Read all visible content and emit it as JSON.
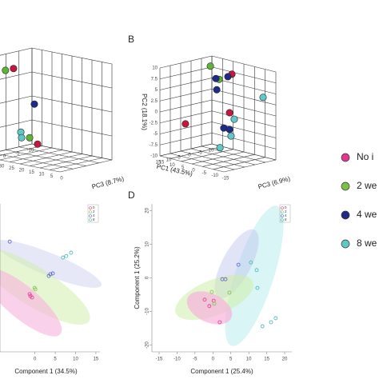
{
  "legend": [
    {
      "label": "No i",
      "color": "#e8348e"
    },
    {
      "label": "2 we",
      "color": "#7cc242"
    },
    {
      "label": "4 we",
      "color": "#1f2a8c"
    },
    {
      "label": "8 we",
      "color": "#62c7c9"
    }
  ],
  "chart_data": [
    {
      "type": "scatter3d",
      "zlabel": "PC3 (8.7%)",
      "xlim": [
        -10,
        10
      ],
      "ylim": [
        -10,
        10
      ],
      "zlim": [
        40,
        0
      ],
      "xticks": [
        -10,
        -5,
        0,
        5,
        10
      ],
      "yticks": [
        -10,
        -5,
        0,
        5,
        10
      ],
      "zticks": [
        40,
        35,
        30,
        25,
        20,
        15,
        10,
        5,
        0
      ],
      "series": [
        {
          "color": "#c8173f",
          "x": [
            -2.9,
            -10
          ],
          "y": [
            6.6,
            -9.8
          ],
          "z": [
            40,
            37.2
          ]
        },
        {
          "color": "#5db535",
          "x": [
            0.2,
            -9.1
          ],
          "y": [
            6.6,
            -8.6
          ],
          "z": [
            40,
            40
          ]
        },
        {
          "color": "#1f2a8c",
          "x": [
            -10
          ],
          "y": [
            -1.6
          ],
          "z": [
            38.8
          ]
        },
        {
          "color": "#62c7c9",
          "x": [
            -5.7,
            -6
          ],
          "y": [
            -7,
            -8.2
          ],
          "z": [
            40,
            40
          ]
        }
      ]
    },
    {
      "type": "scatter3d",
      "panel_label": "B",
      "xlabel": "PC1 (43.5%)",
      "ylabel": "PC2 (18.1%)",
      "zlabel": "PC3 (6.9%)",
      "xlim": [
        -10,
        15
      ],
      "ylim": [
        -10,
        10
      ],
      "zlim": [
        15,
        -15
      ],
      "xticks": [
        -10,
        -5,
        0,
        5,
        10,
        15
      ],
      "yticks": [
        -10,
        -7.5,
        -5,
        -2.5,
        0,
        2.5,
        5,
        7.5,
        10
      ],
      "zticks": [
        15,
        10,
        5,
        0,
        -5,
        -10,
        -15
      ],
      "series": [
        {
          "color": "#c8173f",
          "x": [
            -2.5,
            -2.5,
            10
          ],
          "y": [
            8.7,
            -0.2,
            -2.4
          ],
          "z": [
            -1.7,
            -0.6,
            7.9
          ]
        },
        {
          "color": "#5db535",
          "x": [
            -2.5,
            -2.5
          ],
          "y": [
            9.3,
            6.8
          ],
          "z": [
            8.4,
            4.3
          ]
        },
        {
          "color": "#1f2a8c",
          "x": [
            -2.5,
            -2.5,
            -2.5,
            -2.5,
            -2.5
          ],
          "y": [
            6.8,
            7.9,
            4.3,
            -4,
            -4
          ],
          "z": [
            5.8,
            0.2,
            5.4,
            2.1,
            -0.6
          ]
        },
        {
          "color": "#62c7c9",
          "x": [
            -10,
            -2.5,
            -2.5,
            -2.5
          ],
          "y": [
            3.5,
            -1.4,
            -5.4,
            -8.7
          ],
          "z": [
            -9,
            -2.8,
            -1.3,
            3.9
          ]
        }
      ]
    },
    {
      "type": "scatter",
      "xlabel": "Component 1 (34.5%)",
      "xlim": [
        -8.6,
        16
      ],
      "ylim": [
        -20,
        20
      ],
      "xticks": [
        0,
        5,
        10,
        15
      ],
      "series": [
        {
          "name": "0",
          "color": "#e8348e",
          "x": [
            -1.3,
            -0.7,
            -1.1
          ],
          "y": [
            -4.4,
            -5.3,
            -4.9
          ]
        },
        {
          "name": "2",
          "color": "#7cc242",
          "x": [
            -0.1,
            0.1
          ],
          "y": [
            -2.7,
            -3.1
          ]
        },
        {
          "name": "4",
          "color": "#5560c8",
          "x": [
            3.4,
            3.8,
            4.4,
            -6.2
          ],
          "y": [
            0.5,
            1,
            1.2,
            9.8
          ]
        },
        {
          "name": "8",
          "color": "#3fb3b5",
          "x": [
            6.9,
            7.7,
            8.9
          ],
          "y": [
            5.5,
            5.9,
            6.8
          ]
        }
      ]
    },
    {
      "type": "scatter",
      "panel_label": "D",
      "xlabel": "Component 1 (25.4%)",
      "ylabel": "Component 1 (25.2%)",
      "xlim": [
        -17,
        22
      ],
      "ylim": [
        -22,
        22
      ],
      "xticks": [
        -15,
        -10,
        -5,
        0,
        5,
        10,
        15,
        20
      ],
      "yticks": [
        -20,
        -10,
        0,
        10,
        20
      ],
      "series": [
        {
          "name": "0",
          "color": "#e8348e",
          "x": [
            -2.3,
            -1,
            0.2,
            1.9
          ],
          "y": [
            -6.5,
            -8.4,
            -6.8,
            -13.2
          ]
        },
        {
          "name": "2",
          "color": "#7cc242",
          "x": [
            -0.3,
            0.4,
            4.6
          ],
          "y": [
            -4.2,
            -7.7,
            -4.4
          ]
        },
        {
          "name": "4",
          "color": "#5560c8",
          "x": [
            2.6,
            3.5,
            7.1
          ],
          "y": [
            -0.4,
            -0.4,
            3.9
          ]
        },
        {
          "name": "8",
          "color": "#3fb3b5",
          "x": [
            10.6,
            12.2,
            12.4,
            13.8,
            16.2,
            17.5
          ],
          "y": [
            4.6,
            2.3,
            -3,
            -14.4,
            -13.2,
            -12
          ]
        }
      ]
    }
  ]
}
